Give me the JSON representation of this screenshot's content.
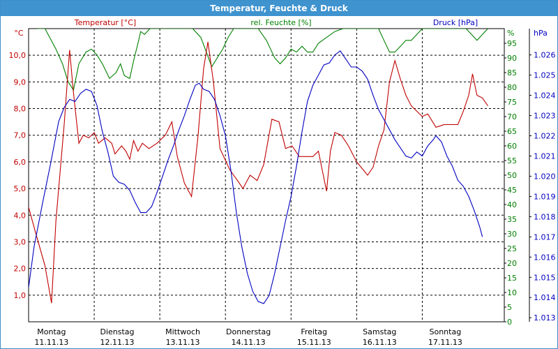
{
  "chart_data": {
    "title": "Temperatur, Feuchte & Druck",
    "type": "line",
    "grid": true,
    "legend_placement": "top",
    "x": {
      "days": [
        {
          "name": "Montag",
          "date": "11.11.13"
        },
        {
          "name": "Dienstag",
          "date": "12.11.13"
        },
        {
          "name": "Mittwoch",
          "date": "13.11.13"
        },
        {
          "name": "Donnerstag",
          "date": "14.11.13"
        },
        {
          "name": "Freitag",
          "date": "15.11.13"
        },
        {
          "name": "Samstag",
          "date": "16.11.13"
        },
        {
          "name": "Sonntag",
          "date": "17.11.13"
        }
      ],
      "range_days": [
        0,
        7.25
      ]
    },
    "axes": {
      "temperature": {
        "label": "Temperatur [°C]",
        "unit": "°C",
        "range": [
          0,
          11
        ],
        "ticks": [
          "1,0",
          "2,0",
          "3,0",
          "4,0",
          "5,0",
          "6,0",
          "7,0",
          "8,0",
          "9,0",
          "10,0"
        ],
        "color": "#c00000"
      },
      "humidity": {
        "label": "rel. Feuchte [%]",
        "unit": "%",
        "range": [
          0,
          100
        ],
        "ticks": [
          "0",
          "5",
          "10",
          "15",
          "20",
          "25",
          "30",
          "35",
          "40",
          "45",
          "50",
          "55",
          "60",
          "65",
          "70",
          "75",
          "80",
          "85",
          "90",
          "95"
        ],
        "color": "#008000"
      },
      "pressure": {
        "label": "Druck [hPa]",
        "unit": "hPa",
        "range": [
          1012.8,
          1027.3
        ],
        "ticks": [
          "1.013",
          "1.014",
          "1.015",
          "1.016",
          "1.017",
          "1.018",
          "1.019",
          "1.020",
          "1.021",
          "1.022",
          "1.023",
          "1.024",
          "1.025",
          "1.026"
        ],
        "color": "#0000c0"
      }
    },
    "series": [
      {
        "name": "Temperatur [°C]",
        "axis": "temperature",
        "color": "#c00000",
        "points": [
          [
            0,
            4.3
          ],
          [
            0.12,
            3.4
          ],
          [
            0.3,
            2.1
          ],
          [
            0.42,
            0.7
          ],
          [
            0.5,
            3.8
          ],
          [
            0.65,
            7.4
          ],
          [
            0.75,
            10.2
          ],
          [
            0.82,
            8.6
          ],
          [
            0.92,
            6.7
          ],
          [
            1.0,
            7.0
          ],
          [
            1.1,
            6.9
          ],
          [
            1.2,
            7.1
          ],
          [
            1.28,
            6.7
          ],
          [
            1.4,
            6.9
          ],
          [
            1.52,
            6.7
          ],
          [
            1.58,
            6.3
          ],
          [
            1.7,
            6.6
          ],
          [
            1.78,
            6.4
          ],
          [
            1.85,
            6.1
          ],
          [
            1.92,
            6.8
          ],
          [
            2.0,
            6.4
          ],
          [
            2.08,
            6.7
          ],
          [
            2.2,
            6.5
          ],
          [
            2.35,
            6.7
          ],
          [
            2.5,
            7.0
          ],
          [
            2.62,
            7.5
          ],
          [
            2.72,
            6.2
          ],
          [
            2.85,
            5.2
          ],
          [
            2.98,
            4.7
          ],
          [
            3.1,
            7.0
          ],
          [
            3.2,
            9.5
          ],
          [
            3.28,
            10.5
          ],
          [
            3.38,
            9.0
          ],
          [
            3.5,
            6.5
          ],
          [
            3.68,
            5.7
          ],
          [
            3.82,
            5.3
          ],
          [
            3.92,
            5.0
          ],
          [
            4.05,
            5.5
          ],
          [
            4.18,
            5.3
          ],
          [
            4.3,
            5.9
          ],
          [
            4.45,
            7.6
          ],
          [
            4.58,
            7.5
          ],
          [
            4.7,
            6.5
          ],
          [
            4.82,
            6.6
          ],
          [
            4.95,
            6.2
          ],
          [
            5.1,
            6.2
          ],
          [
            5.2,
            6.2
          ],
          [
            5.3,
            6.4
          ],
          [
            5.38,
            5.6
          ],
          [
            5.45,
            4.9
          ],
          [
            5.52,
            6.4
          ],
          [
            5.6,
            7.1
          ],
          [
            5.72,
            7.0
          ],
          [
            5.85,
            6.6
          ],
          [
            6.0,
            6.0
          ],
          [
            6.12,
            5.7
          ],
          [
            6.2,
            5.5
          ],
          [
            6.3,
            5.8
          ],
          [
            6.4,
            6.6
          ],
          [
            6.5,
            7.2
          ],
          [
            6.6,
            9.0
          ],
          [
            6.7,
            9.8
          ],
          [
            6.8,
            9.1
          ],
          [
            6.9,
            8.5
          ],
          [
            7.0,
            8.1
          ],
          [
            7.1,
            7.9
          ],
          [
            7.2,
            7.7
          ],
          [
            7.3,
            7.8
          ],
          [
            7.45,
            7.3
          ],
          [
            7.6,
            7.4
          ],
          [
            7.75,
            7.4
          ],
          [
            7.85,
            7.4
          ],
          [
            7.95,
            7.9
          ],
          [
            8.05,
            8.5
          ],
          [
            8.12,
            9.3
          ],
          [
            8.2,
            8.5
          ],
          [
            8.3,
            8.4
          ],
          [
            8.4,
            8.1
          ]
        ]
      },
      {
        "name": "rel. Feuchte [%]",
        "axis": "humidity",
        "color": "#008000",
        "points": [
          [
            0.15,
            100
          ],
          [
            0.3,
            100
          ],
          [
            0.5,
            93
          ],
          [
            0.62,
            88
          ],
          [
            0.72,
            82
          ],
          [
            0.82,
            79
          ],
          [
            0.92,
            88
          ],
          [
            1.05,
            92
          ],
          [
            1.15,
            93
          ],
          [
            1.25,
            91
          ],
          [
            1.35,
            88
          ],
          [
            1.48,
            83
          ],
          [
            1.6,
            85
          ],
          [
            1.68,
            88
          ],
          [
            1.75,
            84
          ],
          [
            1.85,
            83
          ],
          [
            1.92,
            89
          ],
          [
            2.0,
            95
          ],
          [
            2.05,
            99
          ],
          [
            2.12,
            98
          ],
          [
            2.22,
            100
          ],
          [
            2.6,
            100
          ],
          [
            2.85,
            100
          ],
          [
            3.0,
            100
          ],
          [
            3.15,
            97
          ],
          [
            3.25,
            92
          ],
          [
            3.35,
            87
          ],
          [
            3.45,
            90
          ],
          [
            3.55,
            93
          ],
          [
            3.65,
            97
          ],
          [
            3.75,
            100
          ],
          [
            4.05,
            100
          ],
          [
            4.2,
            100
          ],
          [
            4.35,
            96
          ],
          [
            4.5,
            90
          ],
          [
            4.6,
            88
          ],
          [
            4.7,
            90
          ],
          [
            4.8,
            93
          ],
          [
            4.9,
            92
          ],
          [
            5.0,
            94
          ],
          [
            5.1,
            92
          ],
          [
            5.2,
            92
          ],
          [
            5.3,
            95
          ],
          [
            5.45,
            97
          ],
          [
            5.6,
            99
          ],
          [
            5.75,
            100
          ],
          [
            6.0,
            100
          ],
          [
            6.25,
            100
          ],
          [
            6.4,
            100
          ],
          [
            6.5,
            96
          ],
          [
            6.6,
            92
          ],
          [
            6.7,
            92
          ],
          [
            6.8,
            94
          ],
          [
            6.9,
            96
          ],
          [
            7.0,
            96
          ],
          [
            7.2,
            100
          ],
          [
            7.4,
            100
          ],
          [
            7.6,
            100
          ],
          [
            8.0,
            100
          ],
          [
            8.1,
            98
          ],
          [
            8.2,
            96
          ],
          [
            8.3,
            98
          ],
          [
            8.4,
            100
          ]
        ]
      },
      {
        "name": "Druck [hPa]",
        "axis": "pressure",
        "color": "#0000c0",
        "points": [
          [
            0,
            1014.5
          ],
          [
            0.1,
            1016.5
          ],
          [
            0.25,
            1018.6
          ],
          [
            0.4,
            1020.6
          ],
          [
            0.55,
            1022.7
          ],
          [
            0.65,
            1023.4
          ],
          [
            0.75,
            1023.8
          ],
          [
            0.85,
            1023.7
          ],
          [
            0.95,
            1024.1
          ],
          [
            1.05,
            1024.3
          ],
          [
            1.15,
            1024.2
          ],
          [
            1.25,
            1023.5
          ],
          [
            1.35,
            1022.2
          ],
          [
            1.45,
            1021.2
          ],
          [
            1.55,
            1020.0
          ],
          [
            1.65,
            1019.7
          ],
          [
            1.75,
            1019.6
          ],
          [
            1.85,
            1019.3
          ],
          [
            1.95,
            1018.7
          ],
          [
            2.05,
            1018.2
          ],
          [
            2.15,
            1018.2
          ],
          [
            2.25,
            1018.5
          ],
          [
            2.35,
            1019.2
          ],
          [
            2.45,
            1020.0
          ],
          [
            2.55,
            1020.8
          ],
          [
            2.65,
            1021.5
          ],
          [
            2.75,
            1022.3
          ],
          [
            2.85,
            1023.0
          ],
          [
            2.95,
            1023.8
          ],
          [
            3.05,
            1024.5
          ],
          [
            3.12,
            1024.6
          ],
          [
            3.2,
            1024.3
          ],
          [
            3.3,
            1024.2
          ],
          [
            3.4,
            1023.8
          ],
          [
            3.5,
            1023.0
          ],
          [
            3.6,
            1022.0
          ],
          [
            3.7,
            1020.3
          ],
          [
            3.8,
            1018.2
          ],
          [
            3.9,
            1016.5
          ],
          [
            4.0,
            1015.2
          ],
          [
            4.1,
            1014.3
          ],
          [
            4.2,
            1013.8
          ],
          [
            4.3,
            1013.7
          ],
          [
            4.4,
            1014.1
          ],
          [
            4.5,
            1015.2
          ],
          [
            4.6,
            1016.5
          ],
          [
            4.7,
            1017.8
          ],
          [
            4.8,
            1019.0
          ],
          [
            4.9,
            1020.5
          ],
          [
            5.0,
            1022.2
          ],
          [
            5.1,
            1023.7
          ],
          [
            5.2,
            1024.5
          ],
          [
            5.3,
            1025.0
          ],
          [
            5.4,
            1025.5
          ],
          [
            5.5,
            1025.6
          ],
          [
            5.6,
            1026.0
          ],
          [
            5.7,
            1026.2
          ],
          [
            5.8,
            1025.8
          ],
          [
            5.9,
            1025.4
          ],
          [
            6.0,
            1025.4
          ],
          [
            6.1,
            1025.2
          ],
          [
            6.2,
            1024.8
          ],
          [
            6.3,
            1024.0
          ],
          [
            6.4,
            1023.3
          ],
          [
            6.5,
            1022.8
          ],
          [
            6.6,
            1022.3
          ],
          [
            6.7,
            1021.8
          ],
          [
            6.8,
            1021.4
          ],
          [
            6.9,
            1021.0
          ],
          [
            7.0,
            1020.9
          ],
          [
            7.1,
            1021.2
          ],
          [
            7.2,
            1021.0
          ],
          [
            7.3,
            1021.5
          ],
          [
            7.4,
            1021.8
          ],
          [
            7.45,
            1022.0
          ],
          [
            7.55,
            1021.7
          ],
          [
            7.65,
            1021.0
          ],
          [
            7.75,
            1020.5
          ],
          [
            7.85,
            1019.8
          ],
          [
            7.95,
            1019.5
          ],
          [
            8.05,
            1019.0
          ],
          [
            8.15,
            1018.3
          ],
          [
            8.25,
            1017.5
          ],
          [
            8.3,
            1017.0
          ]
        ]
      }
    ]
  }
}
